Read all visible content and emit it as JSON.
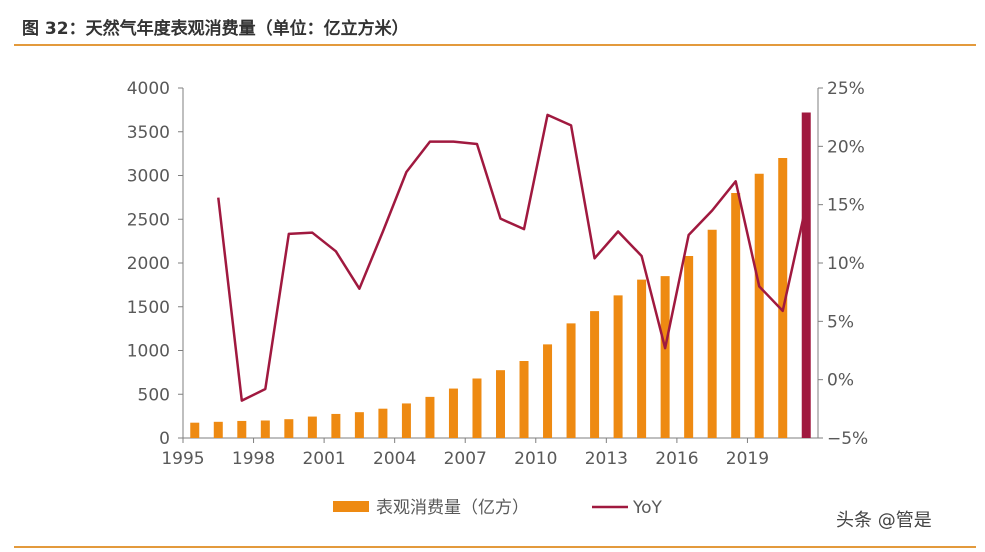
{
  "title": "图 32：天然气年度表观消费量（单位：亿立方米）",
  "watermark": "头条 @管是",
  "colors": {
    "bar": "#ee8a12",
    "bar_last": "#a0193f",
    "line": "#a0193f",
    "rule": "#e39a3c",
    "axis": "#7f7f7f"
  },
  "chart_data": {
    "type": "bar",
    "categories": [
      1995,
      1996,
      1997,
      1998,
      1999,
      2000,
      2001,
      2002,
      2003,
      2004,
      2005,
      2006,
      2007,
      2008,
      2009,
      2010,
      2011,
      2012,
      2013,
      2014,
      2015,
      2016,
      2017,
      2018,
      2019,
      2020,
      2021
    ],
    "x_tick_labels": [
      "1995",
      "1998",
      "2001",
      "2004",
      "2007",
      "2010",
      "2013",
      "2016",
      "2019"
    ],
    "series": [
      {
        "name": "表观消费量（亿方）",
        "type": "bar",
        "axis": "left",
        "values": [
          175,
          185,
          195,
          200,
          215,
          245,
          275,
          295,
          335,
          395,
          470,
          565,
          680,
          775,
          880,
          1070,
          1310,
          1450,
          1630,
          1810,
          1850,
          2080,
          2380,
          2800,
          3020,
          3200,
          3720
        ]
      },
      {
        "name": "YoY",
        "type": "line",
        "axis": "right",
        "values": [
          null,
          15.6,
          -1.8,
          -0.8,
          12.5,
          12.6,
          11.0,
          7.8,
          12.7,
          17.8,
          20.4,
          20.4,
          20.2,
          13.8,
          12.9,
          22.7,
          21.8,
          10.4,
          12.7,
          10.6,
          2.7,
          12.4,
          14.5,
          17.0,
          8.0,
          5.9,
          15.0
        ]
      }
    ],
    "yaxis_left": {
      "ylim": [
        0,
        4000
      ],
      "ticks": [
        "0",
        "500",
        "1000",
        "1500",
        "2000",
        "2500",
        "3000",
        "3500",
        "4000"
      ]
    },
    "yaxis_right": {
      "ylim": [
        -5,
        25
      ],
      "ticks": [
        "−5%",
        "0%",
        "5%",
        "10%",
        "15%",
        "20%",
        "25%"
      ]
    },
    "legend": {
      "position": "bottom",
      "items": [
        "表观消费量（亿方）",
        "YoY"
      ]
    },
    "grid": false
  }
}
